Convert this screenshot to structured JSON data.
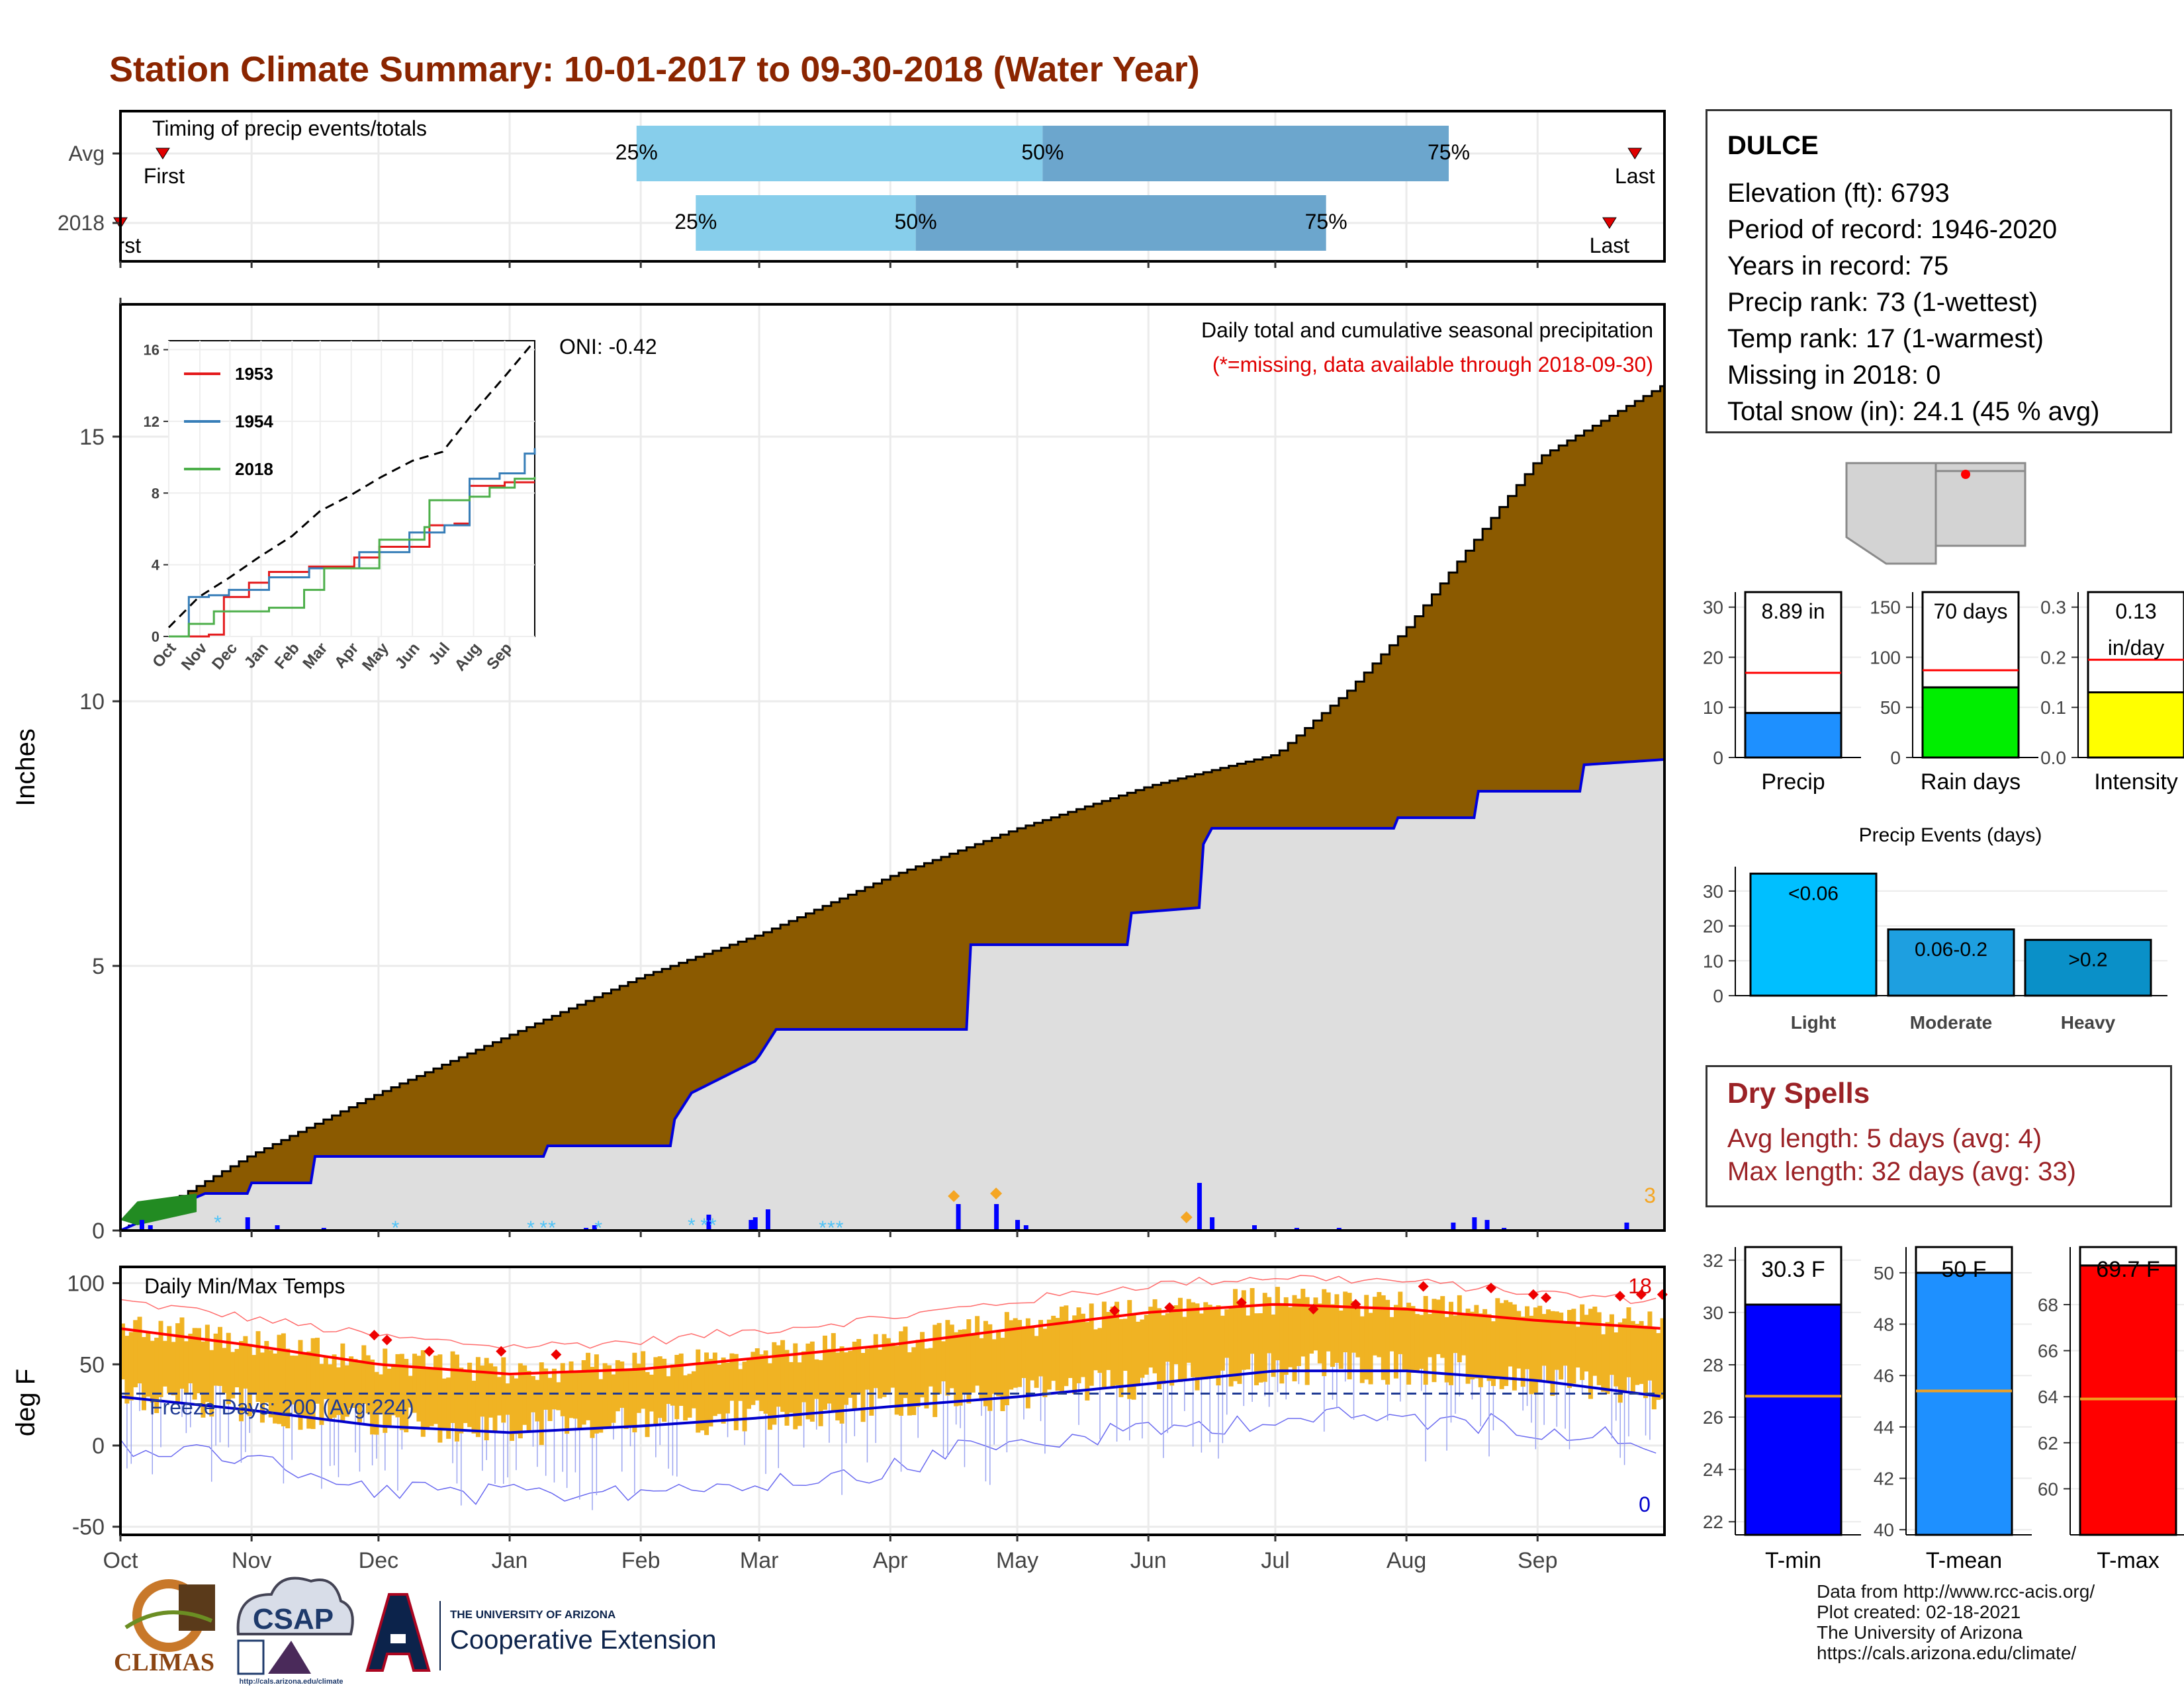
{
  "title": "Station Climate Summary: 10-01-2017 to 09-30-2018 (Water Year)",
  "timing": {
    "label": "Timing of precip events/totals",
    "rows": [
      {
        "name": "Avg",
        "first_label": "First",
        "last_label": "Last",
        "p25": "25%",
        "p50": "50%",
        "p75": "75%",
        "first_day": 10,
        "p25_day": 122,
        "p50_day": 218,
        "p75_day": 314,
        "last_day": 358
      },
      {
        "name": "2018",
        "first_label": "First",
        "last_label": "Last",
        "p25": "25%",
        "p50": "50%",
        "p75": "75%",
        "first_day": 0,
        "p25_day": 136,
        "p50_day": 188,
        "p75_day": 285,
        "last_day": 352
      }
    ]
  },
  "precip_panel": {
    "ylabel": "Inches",
    "yticks": [
      0,
      5,
      10,
      15
    ],
    "ylim": [
      0,
      17.5
    ],
    "heading": "Daily total and cumulative seasonal precipitation",
    "note": "(*=missing, data available through 2018-09-30)",
    "oni": "ONI: -0.42",
    "corner_count": "3"
  },
  "inset": {
    "yticks": [
      "0",
      "4",
      "8",
      "12",
      "16"
    ],
    "months": [
      "Oct",
      "Nov",
      "Dec",
      "Jan",
      "Feb",
      "Mar",
      "Apr",
      "May",
      "Jun",
      "Jul",
      "Aug",
      "Sep"
    ],
    "legend": [
      {
        "name": "1953",
        "color": "#e41a1c"
      },
      {
        "name": "1954",
        "color": "#377eb8"
      },
      {
        "name": "2018",
        "color": "#4daf4a"
      }
    ]
  },
  "temp_panel": {
    "ylabel": "deg F",
    "yticks": [
      "100",
      "50",
      "0",
      "-50"
    ],
    "label": "Daily Min/Max Temps",
    "freeze": "Freeze Days: 200 (Avg:224)",
    "hot_count": "18",
    "cold_count": "0"
  },
  "months": [
    "Oct",
    "Nov",
    "Dec",
    "Jan",
    "Feb",
    "Mar",
    "Apr",
    "May",
    "Jun",
    "Jul",
    "Aug",
    "Sep"
  ],
  "station": {
    "name": "DULCE",
    "rows": [
      "Elevation (ft): 6793",
      "Period of record: 1946-2020",
      "Years in record: 75",
      "Precip rank: 73 (1-wettest)",
      "Temp rank: 17 (1-warmest)",
      "Missing in 2018: 0",
      "Total snow (in): 24.1 (45 % avg)"
    ]
  },
  "mini_bars": [
    {
      "label": "Precip",
      "value_text": "8.89 in",
      "value": 8.89,
      "avg": 16.9,
      "ymax": 33,
      "ticks": [
        "0",
        "10",
        "20",
        "30"
      ],
      "tickvals": [
        0,
        10,
        20,
        30
      ],
      "color": "#1e90ff"
    },
    {
      "label": "Rain days",
      "value_text": "70 days",
      "value": 70,
      "avg": 87,
      "ymax": 165,
      "ticks": [
        "0",
        "50",
        "100",
        "150"
      ],
      "tickvals": [
        0,
        50,
        100,
        150
      ],
      "color": "#00ee00"
    },
    {
      "label": "Intensity",
      "value_text": "0.13",
      "value_text2": "in/day",
      "value": 0.13,
      "avg": 0.195,
      "ymax": 0.33,
      "ticks": [
        "0.0",
        "0.1",
        "0.2",
        "0.3"
      ],
      "tickvals": [
        0,
        0.1,
        0.2,
        0.3
      ],
      "color": "#ffff00"
    }
  ],
  "precip_events": {
    "title": "Precip Events (days)",
    "yticks": [
      "0",
      "10",
      "20",
      "30"
    ],
    "categories": [
      "Light",
      "Moderate",
      "Heavy"
    ],
    "labels": [
      "<0.06",
      "0.06-0.2",
      ">0.2"
    ],
    "values": [
      35,
      19,
      16
    ],
    "colors": [
      "#00bfff",
      "#1e9fe0",
      "#0a90c8"
    ]
  },
  "dry_spells": {
    "title": "Dry Spells",
    "avg_length": "Avg length: 5 days (avg: 4)",
    "max_length": "Max length: 32 days (avg: 33)"
  },
  "temp_bars": [
    {
      "label": "T-min",
      "value_text": "30.3 F",
      "value": 30.3,
      "avg": 26.8,
      "ymin": 21.5,
      "ymax": 32.5,
      "ticks": [
        "22",
        "24",
        "26",
        "28",
        "30",
        "32"
      ],
      "tickvals": [
        22,
        24,
        26,
        28,
        30,
        32
      ],
      "color": "#0000ff"
    },
    {
      "label": "T-mean",
      "value_text": "50 F",
      "value": 50.0,
      "avg": 45.4,
      "ymin": 39.8,
      "ymax": 51.0,
      "ticks": [
        "40",
        "42",
        "44",
        "46",
        "48",
        "50"
      ],
      "tickvals": [
        40,
        42,
        44,
        46,
        48,
        50
      ],
      "color": "#1e90ff"
    },
    {
      "label": "T-max",
      "value_text": "69.7 F",
      "value": 69.7,
      "avg": 63.9,
      "ymin": 58.0,
      "ymax": 70.5,
      "ticks": [
        "60",
        "62",
        "64",
        "66",
        "68"
      ],
      "tickvals": [
        60,
        62,
        64,
        66,
        68
      ],
      "color": "#ff0000"
    }
  ],
  "credits": [
    "Data from http://www.rcc-acis.org/",
    "Plot created: 02-18-2021",
    "The University of Arizona",
    "https://cals.arizona.edu/climate/"
  ],
  "logos": {
    "climas": "CLIMAS",
    "csap": "CSAP",
    "csap_url": "http://cals.arizona.edu/climate",
    "ua_line1": "THE UNIVERSITY OF ARIZONA",
    "ua_line2": "Cooperative Extension"
  },
  "chart_data": [
    {
      "type": "area",
      "title": "Daily total and cumulative seasonal precipitation",
      "ylabel": "Inches",
      "ylim": [
        0,
        17.5
      ],
      "x_unit": "day of water year",
      "series": [
        {
          "name": "Avg",
          "x": [
            0,
            30,
            61,
            92,
            123,
            151,
            182,
            212,
            243,
            273,
            290,
            304,
            335,
            365
          ],
          "values": [
            0,
            1.4,
            2.6,
            3.7,
            4.8,
            5.6,
            6.7,
            7.6,
            8.4,
            9.0,
            10.2,
            11.4,
            14.6,
            16.0
          ]
        },
        {
          "name": "2018",
          "x": [
            0,
            20,
            30,
            31,
            45,
            46,
            100,
            101,
            130,
            131,
            135,
            150,
            151,
            155,
            200,
            201,
            238,
            239,
            255,
            256,
            258,
            301,
            302,
            320,
            321,
            345,
            346,
            365
          ],
          "values": [
            0,
            0.7,
            0.7,
            0.9,
            0.9,
            1.4,
            1.4,
            1.6,
            1.6,
            2.1,
            2.6,
            3.2,
            3.3,
            3.8,
            3.8,
            5.4,
            5.4,
            6.0,
            6.1,
            7.3,
            7.6,
            7.6,
            7.8,
            7.8,
            8.3,
            8.3,
            8.8,
            8.9
          ]
        }
      ]
    },
    {
      "type": "line",
      "ylabel": "deg F",
      "ylim": [
        -55,
        110
      ],
      "series": [
        {
          "name": "Avg max",
          "x": [
            0,
            30,
            61,
            92,
            123,
            151,
            182,
            212,
            243,
            273,
            304,
            335,
            365
          ],
          "values": [
            72,
            62,
            50,
            44,
            47,
            54,
            62,
            72,
            82,
            87,
            84,
            77,
            72
          ]
        },
        {
          "name": "Avg min",
          "x": [
            0,
            30,
            61,
            92,
            123,
            151,
            182,
            212,
            243,
            273,
            304,
            335,
            365
          ],
          "values": [
            30,
            22,
            12,
            8,
            12,
            17,
            24,
            30,
            38,
            46,
            46,
            40,
            30
          ]
        }
      ]
    },
    {
      "type": "bar",
      "title": "Precip Events (days)",
      "categories": [
        "Light",
        "Moderate",
        "Heavy"
      ],
      "values": [
        35,
        19,
        16
      ]
    }
  ]
}
